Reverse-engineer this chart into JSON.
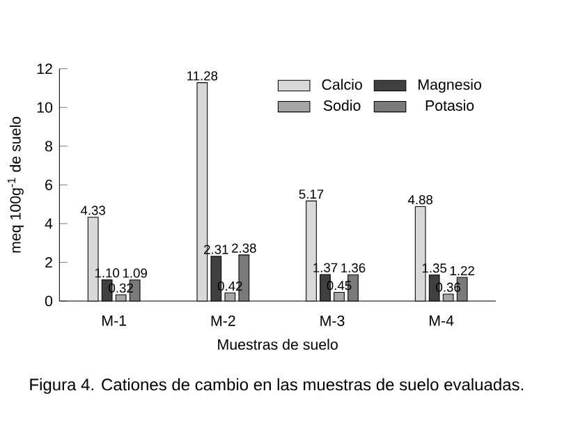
{
  "chart_data": {
    "type": "bar",
    "ylabel": "meq 100g$^{-1}$ de suelo",
    "xlabel": "Muestras de suelo",
    "categories": [
      "M-1",
      "M-2",
      "M-3",
      "M-4"
    ],
    "series": [
      {
        "name": "Calcio",
        "color": "#d9d9d9",
        "values": [
          4.33,
          11.28,
          5.17,
          4.88
        ],
        "value_labels": [
          "4.33",
          "11.28",
          "5.17",
          "4.88"
        ]
      },
      {
        "name": "Magnesio",
        "color": "#404040",
        "values": [
          1.1,
          2.31,
          1.37,
          1.35
        ],
        "value_labels": [
          "1.10",
          "2.31",
          "1.37",
          "1.35"
        ]
      },
      {
        "name": "Sodio",
        "color": "#a6a6a6",
        "values": [
          0.32,
          0.42,
          0.45,
          0.36
        ],
        "value_labels": [
          "0.32",
          "0.42",
          "0.45",
          "0.36"
        ]
      },
      {
        "name": "Potasio",
        "color": "#7a7a7a",
        "values": [
          1.09,
          2.38,
          1.36,
          1.22
        ],
        "value_labels": [
          "1.09",
          "2.38",
          "1.36",
          "1.22"
        ]
      }
    ],
    "ylim": [
      0,
      12
    ],
    "yticks": [
      0,
      2,
      4,
      6,
      8,
      10,
      12
    ],
    "grid": false,
    "legend": "top right",
    "annotations": [
      "Figura 4. Cationes de cambio en las muestras de suelo evaluadas."
    ]
  }
}
